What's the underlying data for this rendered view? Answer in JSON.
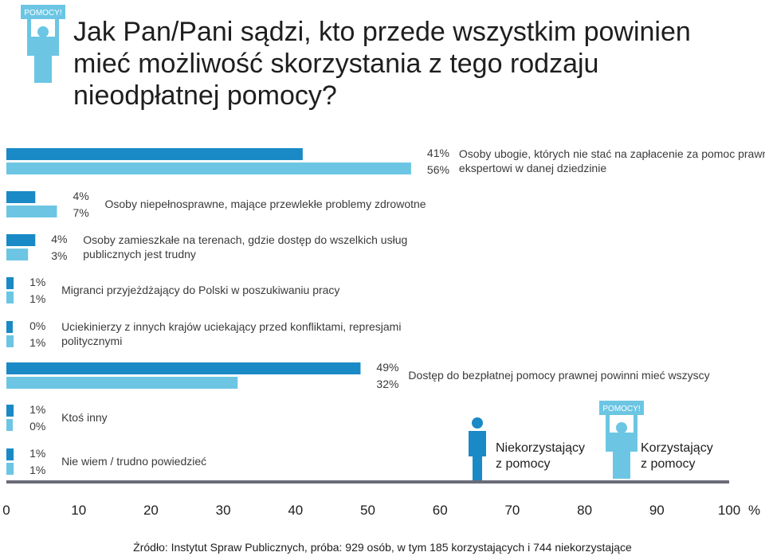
{
  "title": "Jak Pan/Pani sądzi, kto przede wszystkim powinien mieć możliwość skorzystania z tego rodzaju nieodpłatnej pomocy?",
  "source": "Źródło: Instytut Spraw Publicznych, próba: 929 osób, w tym 185 korzystających i 744 niekorzystające",
  "colors": {
    "dark": "#1a8ac6",
    "light": "#6cc6e3",
    "axis": "#6b6b78",
    "text": "#3a3a3a"
  },
  "icons": [
    {
      "name": "person-holding-sign-icon",
      "sign_text": "POMOCY!"
    },
    {
      "name": "person-icon"
    }
  ],
  "chart_data": {
    "type": "bar",
    "orientation": "horizontal",
    "xlim": [
      0,
      100
    ],
    "unit": "%",
    "xticks": [
      "0",
      "10",
      "20",
      "30",
      "40",
      "50",
      "60",
      "70",
      "80",
      "90",
      "100"
    ],
    "categories": [
      "Osoby ubogie, których nie stać na zapłacenie za pomoc prawnikowi, czy ekspertowi w danej dziedzinie",
      "Osoby niepełnosprawne, mające przewlekłe problemy zdrowotne",
      "Osoby zamieszkałe na terenach, gdzie dostęp do wszelkich usług publicznych jest trudny",
      "Migranci przyjeżdżający do Polski w poszukiwaniu pracy",
      "Uciekinierzy z innych krajów uciekający przed konfliktami, represjami politycznymi",
      "Dostęp do bezpłatnej pomocy prawnej powinni mieć wszyscy",
      "Ktoś inny",
      "Nie wiem / trudno powiedzieć"
    ],
    "series": [
      {
        "name": "Niekorzystający z pomocy",
        "color": "#1a8ac6",
        "values": [
          41,
          4,
          4,
          1,
          0,
          49,
          1,
          1
        ]
      },
      {
        "name": "Korzystający z pomocy",
        "color": "#6cc6e3",
        "values": [
          56,
          7,
          3,
          1,
          1,
          32,
          0,
          1
        ]
      }
    ]
  }
}
